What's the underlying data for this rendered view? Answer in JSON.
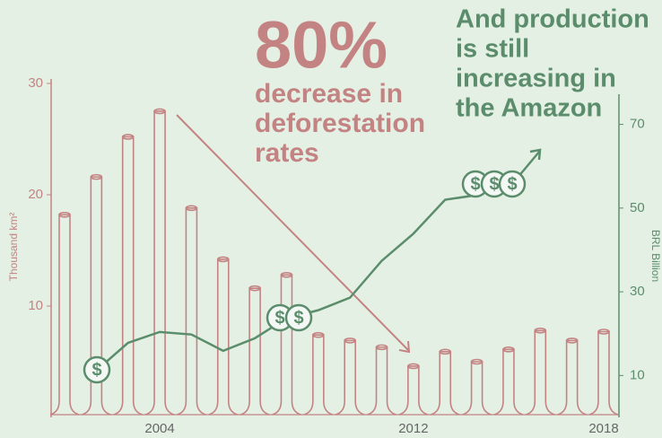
{
  "chart_data": {
    "type": "bar-line",
    "categories": [
      null,
      null,
      null,
      "2004",
      null,
      null,
      null,
      null,
      null,
      null,
      null,
      "2012",
      null,
      null,
      null,
      null,
      null,
      "2018"
    ],
    "series": [
      {
        "name": "Deforestation",
        "axis": "y",
        "color": "#c48383",
        "values": [
          18.2,
          21.6,
          25.2,
          27.5,
          18.8,
          14.2,
          11.6,
          12.8,
          7.4,
          6.9,
          6.3,
          4.6,
          5.9,
          5.0,
          6.1,
          7.8,
          6.9,
          7.7
        ]
      },
      {
        "name": "Production",
        "axis": "y2",
        "color": "#5b8d6c",
        "values": [
          null,
          11.2,
          17.8,
          20.4,
          19.8,
          15.9,
          18.9,
          23.7,
          25.6,
          28.6,
          37.4,
          43.9,
          52,
          53.1,
          55.5,
          null,
          null,
          null
        ]
      }
    ],
    "ylim": [
      0,
      30.4
    ],
    "yticks": [
      10,
      20,
      30
    ],
    "ylabel": "Thousand km²",
    "y2lim": [
      0,
      77.2
    ],
    "y2ticks": [
      10,
      30,
      50,
      70
    ],
    "y2label": "BRL Billion",
    "coin_symbol": "$",
    "annotations": {
      "deforestation": {
        "big": "80%",
        "lines": [
          "decrease in",
          "deforestation",
          "rates"
        ]
      },
      "production": {
        "lines": [
          "And production",
          "is still",
          "increasing in",
          "the Amazon"
        ]
      }
    }
  }
}
